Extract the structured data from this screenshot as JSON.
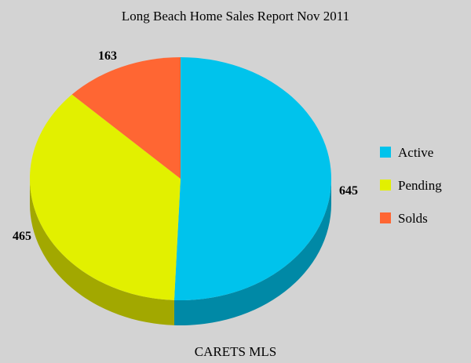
{
  "chart_data": {
    "type": "pie",
    "title": "Long Beach Home Sales Report Nov 2011",
    "footer": "CARETS MLS",
    "legend_position": "right",
    "slices": [
      {
        "label": "Active",
        "value": 645,
        "color": "#00c3ec",
        "shadow": "#0089a6"
      },
      {
        "label": "Pending",
        "value": 465,
        "color": "#e2f000",
        "shadow": "#a2a800"
      },
      {
        "label": "Solds",
        "value": 163,
        "color": "#ff6633",
        "shadow": "#b84a24"
      }
    ]
  }
}
